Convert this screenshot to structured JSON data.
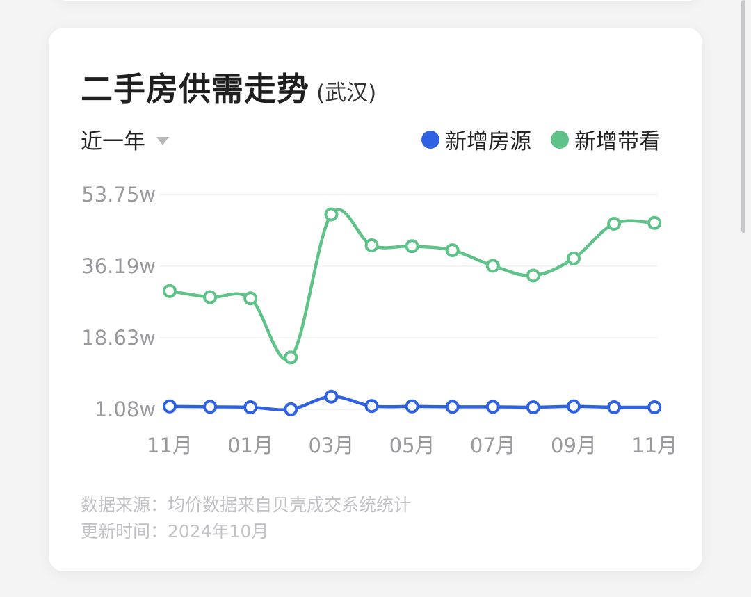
{
  "title": "二手房供需走势",
  "city": "(武汉)",
  "period": {
    "label": "近一年"
  },
  "legend": {
    "supply": {
      "label": "新增房源",
      "color": "#2f62e3"
    },
    "viewing": {
      "label": "新增带看",
      "color": "#5fc389"
    }
  },
  "footer": {
    "source": "数据来源：均价数据来自贝壳成交系统统计",
    "updated": "更新时间：2024年10月"
  },
  "chart_data": {
    "type": "line",
    "y_ticks": [
      "53.75w",
      "36.19w",
      "18.63w",
      "1.08w"
    ],
    "y_tick_values": [
      53.75,
      36.19,
      18.63,
      1.08
    ],
    "ylim": [
      1.08,
      53.75
    ],
    "x_tick_labels": [
      "11月",
      "01月",
      "03月",
      "05月",
      "07月",
      "09月",
      "11月"
    ],
    "x_tick_indices": [
      0,
      2,
      4,
      6,
      8,
      10,
      12
    ],
    "grid": true,
    "legend_position": "top-right",
    "series": [
      {
        "name": "新增房源",
        "color": "#2f62e3",
        "values": [
          1.8,
          1.7,
          1.6,
          1.1,
          4.2,
          1.9,
          1.8,
          1.7,
          1.7,
          1.6,
          1.8,
          1.6,
          1.6
        ]
      },
      {
        "name": "新增带看",
        "color": "#5fc389",
        "values": [
          30.1,
          28.6,
          28.3,
          13.8,
          48.9,
          41.3,
          41.1,
          40.1,
          36.3,
          33.9,
          38.1,
          46.6,
          46.8
        ]
      }
    ]
  }
}
